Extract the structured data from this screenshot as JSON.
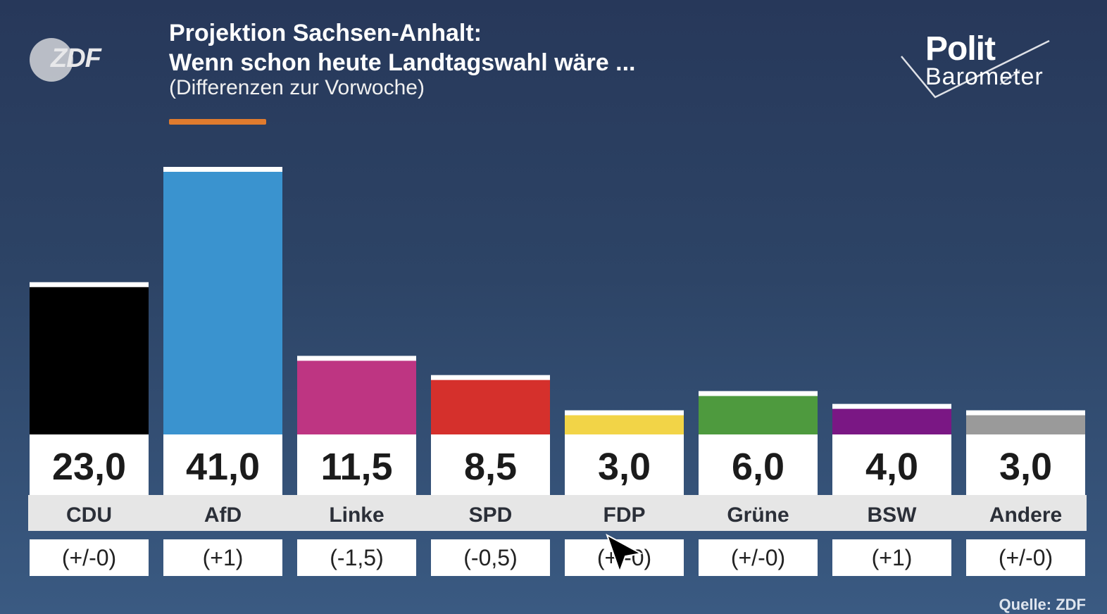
{
  "header": {
    "title_line1": "Projektion Sachsen-Anhalt:",
    "title_line2": "Wenn schon heute Landtagswahl wäre ...",
    "subtitle": "(Differenzen zur Vorwoche)",
    "logo_left": "ZDF",
    "logo_right_line1": "Polit",
    "logo_right_line2": "Barometer"
  },
  "footer": {
    "source": "Quelle: ZDF"
  },
  "colors": {
    "accent": "#e07b2e",
    "background": "#2d4466"
  },
  "chart_data": {
    "type": "bar",
    "title": "Projektion Sachsen-Anhalt: Wenn schon heute Landtagswahl wäre ...",
    "subtitle": "(Differenzen zur Vorwoche)",
    "categories": [
      "CDU",
      "AfD",
      "Linke",
      "SPD",
      "FDP",
      "Grüne",
      "BSW",
      "Andere"
    ],
    "values": [
      23.0,
      41.0,
      11.5,
      8.5,
      3.0,
      6.0,
      4.0,
      3.0
    ],
    "value_labels": [
      "23,0",
      "41,0",
      "11,5",
      "8,5",
      "3,0",
      "6,0",
      "4,0",
      "3,0"
    ],
    "changes": [
      "(+/-0)",
      "(+1)",
      "(-1,5)",
      "(-0,5)",
      "(+/-0)",
      "(+/-0)",
      "(+1)",
      "(+/-0)"
    ],
    "colors": [
      "#000000",
      "#3a93cf",
      "#be3582",
      "#d5302c",
      "#f2d447",
      "#4e9a3e",
      "#7a1784",
      "#9a9a9a"
    ],
    "xlabel": "",
    "ylabel": "",
    "grid": false,
    "legend": "none"
  }
}
